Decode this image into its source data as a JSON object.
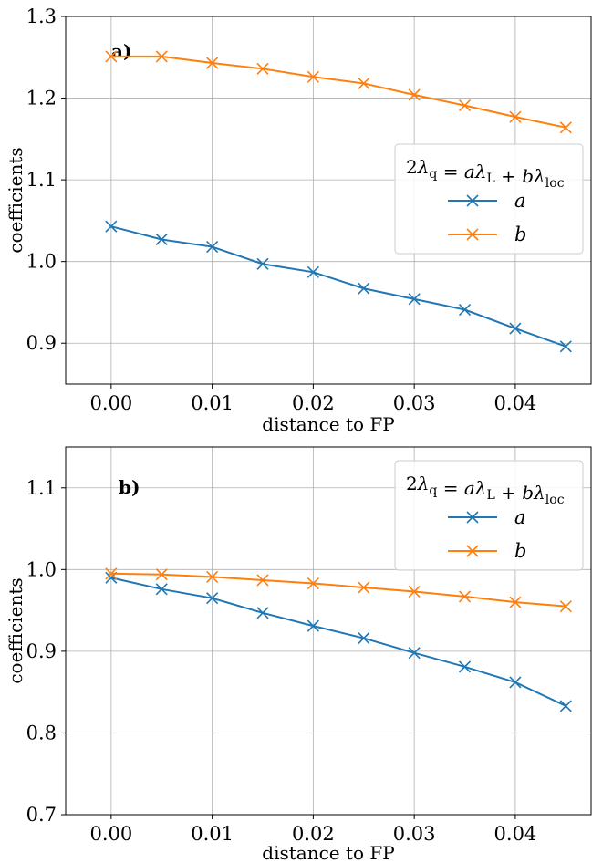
{
  "chart_data": [
    {
      "type": "line",
      "panel_label": "a)",
      "xlabel": "distance to FP",
      "ylabel": "coefficients",
      "xlim": [
        -0.0045,
        0.0475
      ],
      "ylim": [
        0.85,
        1.3
      ],
      "xticks": [
        "0.00",
        "0.01",
        "0.02",
        "0.03",
        "0.04"
      ],
      "xtick_values": [
        0.0,
        0.01,
        0.02,
        0.03,
        0.04
      ],
      "yticks": [
        "0.9",
        "1.0",
        "1.1",
        "1.2",
        "1.3"
      ],
      "ytick_values": [
        0.9,
        1.0,
        1.1,
        1.2,
        1.3
      ],
      "grid": true,
      "legend_position": "center-right",
      "legend_title": "2λq = aλL + bλloc",
      "x": [
        0.0,
        0.005,
        0.01,
        0.015,
        0.02,
        0.025,
        0.03,
        0.035,
        0.04,
        0.045
      ],
      "series": [
        {
          "name": "a",
          "color": "#1f77b4",
          "marker": "x",
          "values": [
            1.043,
            1.027,
            1.018,
            0.997,
            0.987,
            0.967,
            0.954,
            0.941,
            0.918,
            0.896
          ]
        },
        {
          "name": "b",
          "color": "#ff7f0e",
          "marker": "x",
          "values": [
            1.251,
            1.251,
            1.243,
            1.236,
            1.226,
            1.218,
            1.204,
            1.191,
            1.177,
            1.164
          ]
        }
      ]
    },
    {
      "type": "line",
      "panel_label": "b)",
      "xlabel": "distance to FP",
      "ylabel": "coefficients",
      "xlim": [
        -0.0045,
        0.0475
      ],
      "ylim": [
        0.7,
        1.15
      ],
      "xticks": [
        "0.00",
        "0.01",
        "0.02",
        "0.03",
        "0.04"
      ],
      "xtick_values": [
        0.0,
        0.01,
        0.02,
        0.03,
        0.04
      ],
      "yticks": [
        "0.7",
        "0.8",
        "0.9",
        "1.0",
        "1.1"
      ],
      "ytick_values": [
        0.7,
        0.8,
        0.9,
        1.0,
        1.1
      ],
      "grid": true,
      "legend_position": "upper-right",
      "legend_title": "2λq = aλL + bλloc",
      "x": [
        0.0,
        0.005,
        0.01,
        0.015,
        0.02,
        0.025,
        0.03,
        0.035,
        0.04,
        0.045
      ],
      "series": [
        {
          "name": "a",
          "color": "#1f77b4",
          "marker": "x",
          "values": [
            0.99,
            0.976,
            0.965,
            0.947,
            0.931,
            0.916,
            0.898,
            0.881,
            0.862,
            0.833
          ]
        },
        {
          "name": "b",
          "color": "#ff7f0e",
          "marker": "x",
          "values": [
            0.995,
            0.994,
            0.991,
            0.987,
            0.983,
            0.978,
            0.973,
            0.967,
            0.96,
            0.955
          ]
        }
      ]
    }
  ]
}
